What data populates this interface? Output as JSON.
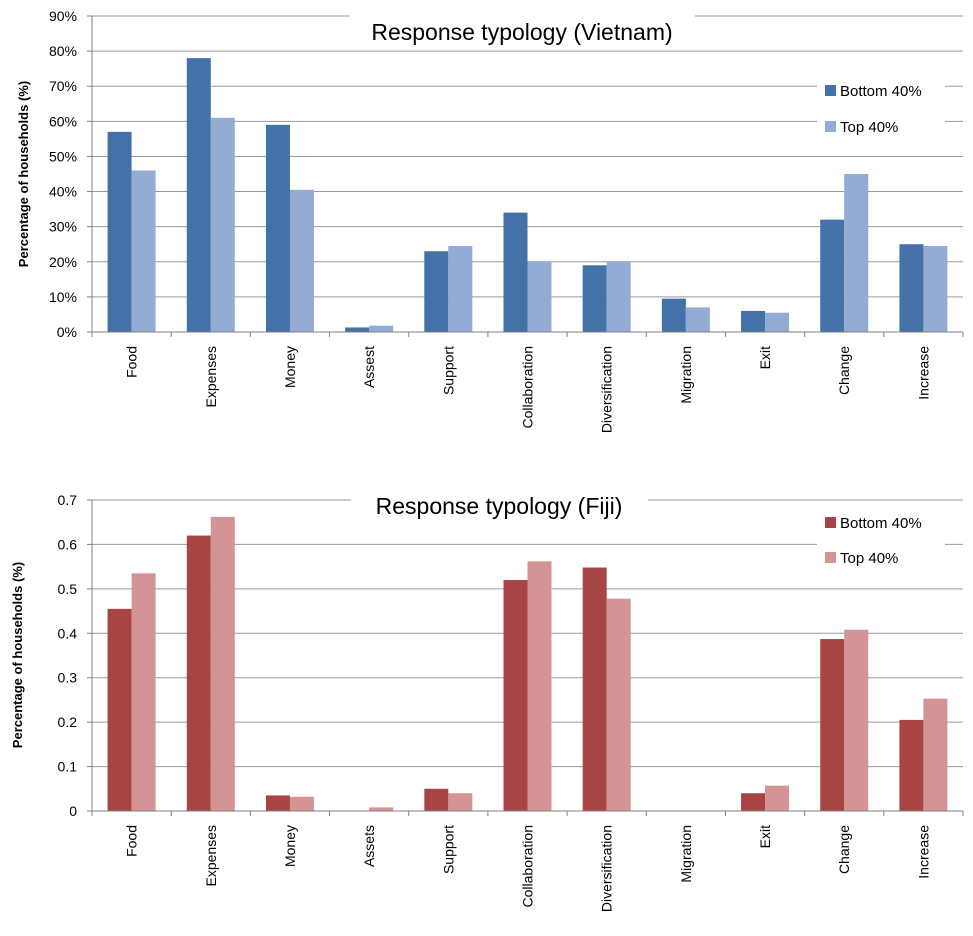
{
  "chart_data": [
    {
      "type": "bar",
      "title": "Response typology (Vietnam)",
      "ylabel": "Percentage of households (%)",
      "xlabel": "",
      "categories": [
        "Food",
        "Expenses",
        "Money",
        "Assest",
        "Support",
        "Collaboration",
        "Diversification",
        "Migration",
        "Exit",
        "Change",
        "Increase"
      ],
      "ylim": [
        0,
        0.9
      ],
      "yticks": [
        "0%",
        "10%",
        "20%",
        "30%",
        "40%",
        "50%",
        "60%",
        "70%",
        "80%",
        "90%"
      ],
      "legend_position": "top-right",
      "grid": true,
      "series": [
        {
          "name": "Bottom 40%",
          "color": "#4472a8",
          "values": [
            0.57,
            0.78,
            0.59,
            0.013,
            0.23,
            0.34,
            0.19,
            0.095,
            0.06,
            0.32,
            0.25
          ]
        },
        {
          "name": "Top 40%",
          "color": "#94abd4",
          "values": [
            0.46,
            0.61,
            0.405,
            0.018,
            0.245,
            0.2,
            0.2,
            0.07,
            0.055,
            0.45,
            0.245
          ]
        }
      ]
    },
    {
      "type": "bar",
      "title": "Response typology (Fiji)",
      "ylabel": "Percentage of households (%)",
      "xlabel": "",
      "categories": [
        "Food",
        "Expenses",
        "Money",
        "Assets",
        "Support",
        "Collaboration",
        "Diversification",
        "Migration",
        "Exit",
        "Change",
        "Increase"
      ],
      "ylim": [
        0,
        0.7
      ],
      "yticks": [
        "0",
        "0.1",
        "0.2",
        "0.3",
        "0.4",
        "0.5",
        "0.6",
        "0.7"
      ],
      "legend_position": "top-right",
      "grid": true,
      "series": [
        {
          "name": "Bottom 40%",
          "color": "#a84444",
          "values": [
            0.455,
            0.62,
            0.035,
            0.0,
            0.05,
            0.52,
            0.548,
            0.0,
            0.04,
            0.387,
            0.205
          ]
        },
        {
          "name": "Top 40%",
          "color": "#d49394",
          "values": [
            0.535,
            0.662,
            0.032,
            0.008,
            0.04,
            0.562,
            0.478,
            0.0,
            0.057,
            0.408,
            0.253
          ]
        }
      ]
    }
  ]
}
